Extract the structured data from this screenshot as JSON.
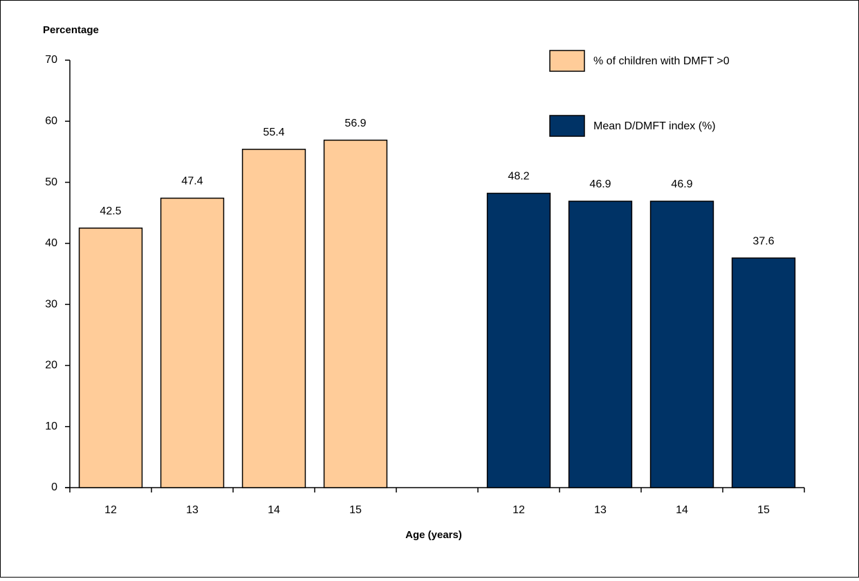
{
  "chart_data": {
    "type": "bar",
    "y_label": "Percentage",
    "x_label": "Age (years)",
    "categories": [
      "12",
      "13",
      "14",
      "15",
      null,
      "12",
      "13",
      "14",
      "15"
    ],
    "series": [
      {
        "name": "% of children with DMFT >0",
        "color": "#FFCC99",
        "values": [
          42.5,
          47.4,
          55.4,
          56.9,
          null,
          null,
          null,
          null,
          null
        ]
      },
      {
        "name": "Mean D/DMFT index (%)",
        "color": "#003366",
        "values": [
          null,
          null,
          null,
          null,
          null,
          48.2,
          46.9,
          46.9,
          37.6
        ]
      }
    ],
    "ylim": [
      0,
      70
    ],
    "yticks": [
      0,
      10,
      20,
      30,
      40,
      50,
      60,
      70
    ],
    "legend": "top-right"
  }
}
